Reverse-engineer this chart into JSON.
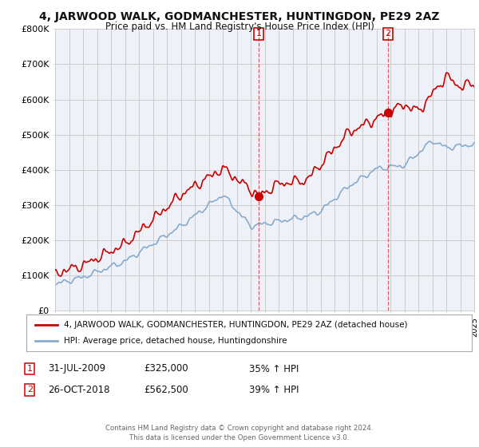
{
  "title": "4, JARWOOD WALK, GODMANCHESTER, HUNTINGDON, PE29 2AZ",
  "subtitle": "Price paid vs. HM Land Registry's House Price Index (HPI)",
  "ylabel_ticks": [
    "£0",
    "£100K",
    "£200K",
    "£300K",
    "£400K",
    "£500K",
    "£600K",
    "£700K",
    "£800K"
  ],
  "ylim": [
    0,
    800000
  ],
  "xlim_start": 1995,
  "xlim_end": 2025,
  "sale1_date": 2009.58,
  "sale1_price": 325000,
  "sale2_date": 2018.83,
  "sale2_price": 562500,
  "legend_line1": "4, JARWOOD WALK, GODMANCHESTER, HUNTINGDON, PE29 2AZ (detached house)",
  "legend_line2": "HPI: Average price, detached house, Huntingdonshire",
  "ann1_date": "31-JUL-2009",
  "ann1_price": "£325,000",
  "ann1_pct": "35% ↑ HPI",
  "ann2_date": "26-OCT-2018",
  "ann2_price": "£562,500",
  "ann2_pct": "39% ↑ HPI",
  "footer": "Contains HM Land Registry data © Crown copyright and database right 2024.\nThis data is licensed under the Open Government Licence v3.0.",
  "red_color": "#cc0000",
  "blue_color": "#88aacc",
  "grid_color": "#cccccc",
  "bg_color": "#ffffff",
  "plot_bg": "#eef2f8"
}
